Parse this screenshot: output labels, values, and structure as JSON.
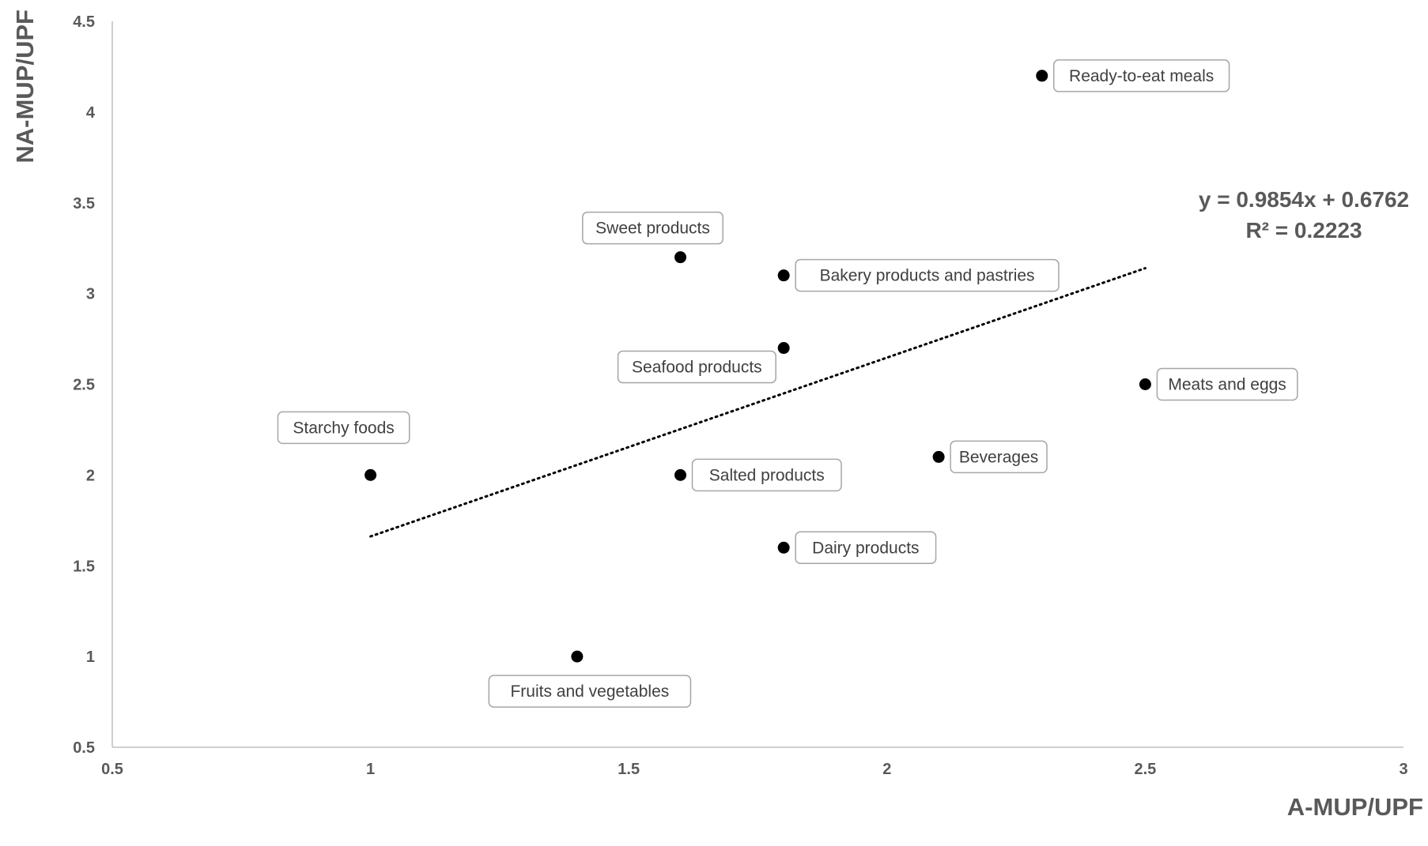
{
  "chart_data": {
    "type": "scatter",
    "xlabel": "A-MUP/UPF",
    "ylabel": "NA-MUP/UPF",
    "xlim": [
      0.5,
      3
    ],
    "ylim": [
      0.5,
      4.5
    ],
    "x_ticks": [
      "0.5",
      "1",
      "1.5",
      "2",
      "2.5",
      "3"
    ],
    "y_ticks": [
      "0.5",
      "1",
      "1.5",
      "2",
      "2.5",
      "3",
      "3.5",
      "4",
      "4.5"
    ],
    "grid": false,
    "points": [
      {
        "label": "Ready-to-eat meals",
        "x": 2.3,
        "y": 4.2,
        "label_side": "right"
      },
      {
        "label": "Sweet products",
        "x": 1.6,
        "y": 3.2,
        "label_side": "above"
      },
      {
        "label": "Bakery products and pastries",
        "x": 1.8,
        "y": 3.1,
        "label_side": "right"
      },
      {
        "label": "Seafood products",
        "x": 1.8,
        "y": 2.7,
        "label_side": "below-left"
      },
      {
        "label": "Meats and eggs",
        "x": 2.5,
        "y": 2.5,
        "label_side": "right"
      },
      {
        "label": "Starchy foods",
        "x": 1.0,
        "y": 2.0,
        "label_side": "above-left"
      },
      {
        "label": "Salted products",
        "x": 1.6,
        "y": 2.0,
        "label_side": "right"
      },
      {
        "label": "Beverages",
        "x": 2.1,
        "y": 2.1,
        "label_side": "right"
      },
      {
        "label": "Dairy products",
        "x": 1.8,
        "y": 1.6,
        "label_side": "right"
      },
      {
        "label": "Fruits and vegetables",
        "x": 1.4,
        "y": 1.0,
        "label_side": "below"
      }
    ],
    "trendline": {
      "type": "linear",
      "slope": 0.9854,
      "intercept": 0.6762,
      "x_range": [
        1.0,
        2.5
      ],
      "style": "dotted",
      "equation_text": "y = 0.9854x + 0.6762",
      "r2_text": "R² = 0.2223"
    }
  }
}
